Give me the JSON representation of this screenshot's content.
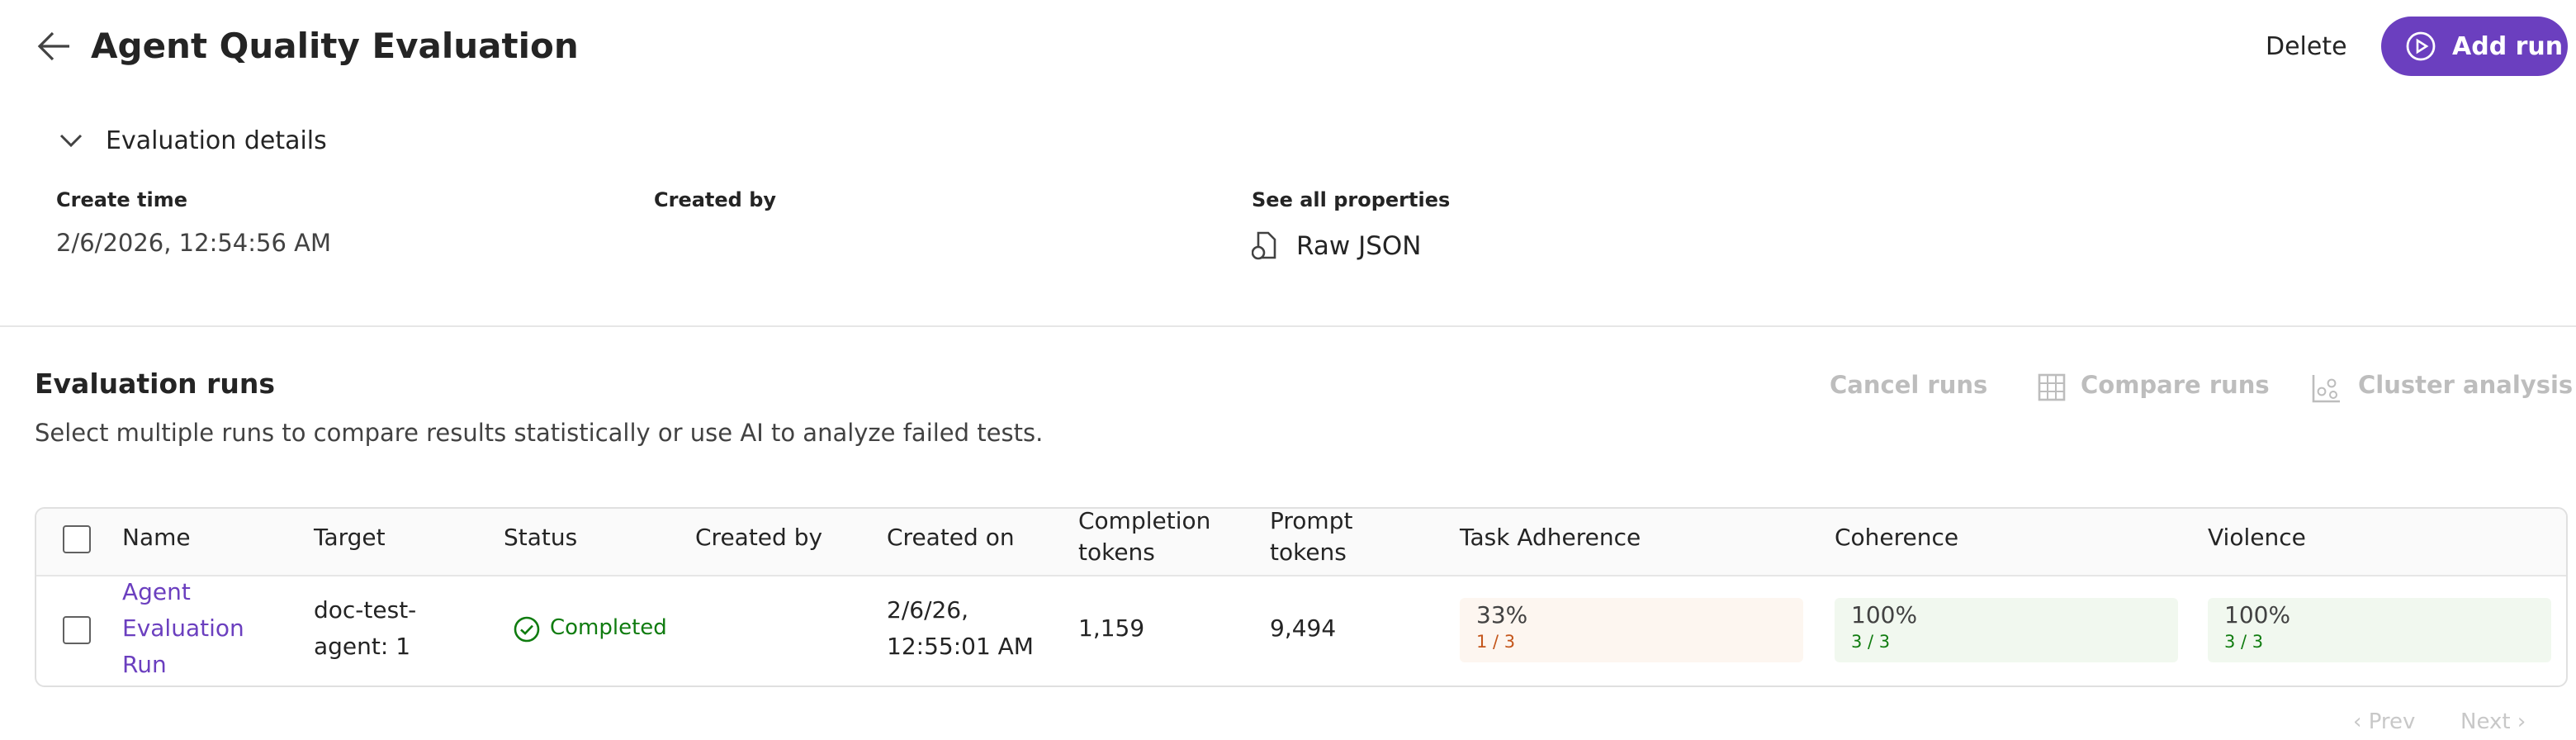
{
  "header": {
    "title": "Agent Quality Evaluation",
    "delete": "Delete",
    "add_run": "Add run"
  },
  "details": {
    "toggle": "Evaluation details",
    "fields": [
      {
        "label": "Create time",
        "value": "2/6/2026, 12:54:56 AM"
      },
      {
        "label": "Created by"
      },
      {
        "label": "See all properties",
        "value": "Raw JSON"
      }
    ]
  },
  "runs": {
    "title": "Evaluation runs",
    "subtitle": "Select multiple runs to compare results statistically or use AI to analyze failed tests.",
    "actions": [
      "Cancel runs",
      "Compare runs",
      "Cluster analysis"
    ],
    "table": {
      "columns": [
        "Name",
        "Target",
        "Status",
        "Created by",
        "Created on",
        "Completion tokens",
        "Prompt tokens",
        "Task Adherence",
        "Coherence",
        "Violence"
      ],
      "rows": [
        {
          "name": "Agent Evaluation Run",
          "target": "doc-test-agent: 1",
          "status": "Completed",
          "created_on": "2/6/26, 12:55:01 AM",
          "completion_tokens": "1,159",
          "prompt_tokens": "9,494",
          "metrics": [
            {
              "value": "33%",
              "detail": "1 / 3"
            },
            {
              "value": "100%",
              "detail": "3 / 3"
            },
            {
              "value": "100%",
              "detail": "3 / 3"
            }
          ]
        }
      ]
    },
    "pagination": {
      "prev": "Prev",
      "next": "Next"
    }
  }
}
